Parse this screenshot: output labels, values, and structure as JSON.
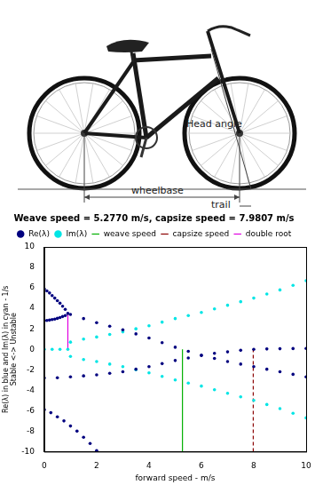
{
  "photo_labels": {
    "head_angle": "Head angle",
    "wheelbase": "wheelbase",
    "trail": "trail"
  },
  "chart_data": {
    "type": "scatter",
    "title": "Weave speed = 5.2770 m/s, capsize speed = 7.9807 m/s",
    "xlabel": "forward speed - m/s",
    "ylabel": [
      "Re(λ) in blue and Im(λ) in cyan - 1/s",
      "Stable <-> Unstable"
    ],
    "xlim": [
      0,
      10
    ],
    "xticks": [
      0,
      2,
      4,
      6,
      8,
      10
    ],
    "ylim": [
      -10,
      10
    ],
    "yticks": [
      -10,
      -8,
      -6,
      -4,
      -2,
      0,
      2,
      4,
      6,
      8,
      10
    ],
    "grid": false,
    "legend": "top",
    "series": [
      {
        "name": "Re(λ)",
        "color": "#00007f",
        "marker": "dot",
        "type": "scatter",
        "points": [
          [
            0,
            5.9
          ],
          [
            0.1,
            5.7
          ],
          [
            0.2,
            5.5
          ],
          [
            0.3,
            5.25
          ],
          [
            0.4,
            5.0
          ],
          [
            0.5,
            4.75
          ],
          [
            0.6,
            4.5
          ],
          [
            0.7,
            4.2
          ],
          [
            0.8,
            3.9
          ],
          [
            0.9,
            3.5
          ],
          [
            0,
            2.8
          ],
          [
            0.1,
            2.82
          ],
          [
            0.2,
            2.85
          ],
          [
            0.3,
            2.9
          ],
          [
            0.4,
            2.95
          ],
          [
            0.5,
            3.02
          ],
          [
            0.6,
            3.1
          ],
          [
            0.7,
            3.2
          ],
          [
            0.8,
            3.3
          ],
          [
            1,
            3.4
          ],
          [
            1.5,
            3.0
          ],
          [
            2,
            2.6
          ],
          [
            2.5,
            2.25
          ],
          [
            3,
            1.9
          ],
          [
            3.5,
            1.5
          ],
          [
            4,
            1.1
          ],
          [
            4.5,
            0.65
          ],
          [
            5,
            0.2
          ],
          [
            5.5,
            -0.2
          ],
          [
            6,
            -0.6
          ],
          [
            6.5,
            -0.9
          ],
          [
            7,
            -1.2
          ],
          [
            7.5,
            -1.45
          ],
          [
            8,
            -1.7
          ],
          [
            8.5,
            -1.95
          ],
          [
            9,
            -2.2
          ],
          [
            9.5,
            -2.45
          ],
          [
            10,
            -2.7
          ],
          [
            0,
            -2.8
          ],
          [
            0.5,
            -2.78
          ],
          [
            1,
            -2.7
          ],
          [
            1.5,
            -2.6
          ],
          [
            2,
            -2.5
          ],
          [
            2.5,
            -2.35
          ],
          [
            3,
            -2.2
          ],
          [
            3.5,
            -1.95
          ],
          [
            4,
            -1.7
          ],
          [
            4.5,
            -1.4
          ],
          [
            5,
            -1.1
          ],
          [
            5.5,
            -0.85
          ],
          [
            6,
            -0.6
          ],
          [
            6.5,
            -0.4
          ],
          [
            7,
            -0.25
          ],
          [
            7.5,
            -0.1
          ],
          [
            8,
            0
          ],
          [
            8.5,
            0.03
          ],
          [
            9,
            0.05
          ],
          [
            9.5,
            0.07
          ],
          [
            10,
            0.08
          ],
          [
            0,
            -5.9
          ],
          [
            0.25,
            -6.2
          ],
          [
            0.5,
            -6.6
          ],
          [
            0.75,
            -7
          ],
          [
            1,
            -7.5
          ],
          [
            1.25,
            -8
          ],
          [
            1.5,
            -8.6
          ],
          [
            1.75,
            -9.2
          ],
          [
            2,
            -9.9
          ]
        ]
      },
      {
        "name": "Im(λ)",
        "color": "#00e5e5",
        "marker": "dot",
        "type": "scatter",
        "points": [
          [
            0,
            0
          ],
          [
            0.3,
            0
          ],
          [
            0.6,
            0
          ],
          [
            0.9,
            0
          ],
          [
            1,
            0.7
          ],
          [
            1.5,
            1.0
          ],
          [
            2,
            1.2
          ],
          [
            2.5,
            1.45
          ],
          [
            3,
            1.7
          ],
          [
            3.5,
            2.0
          ],
          [
            4,
            2.3
          ],
          [
            4.5,
            2.65
          ],
          [
            5,
            3.0
          ],
          [
            5.5,
            3.3
          ],
          [
            6,
            3.6
          ],
          [
            6.5,
            3.95
          ],
          [
            7,
            4.3
          ],
          [
            7.5,
            4.65
          ],
          [
            8,
            5.0
          ],
          [
            8.5,
            5.4
          ],
          [
            9,
            5.8
          ],
          [
            9.5,
            6.25
          ],
          [
            10,
            6.7
          ],
          [
            1,
            -0.7
          ],
          [
            1.5,
            -1.0
          ],
          [
            2,
            -1.2
          ],
          [
            2.5,
            -1.45
          ],
          [
            3,
            -1.7
          ],
          [
            3.5,
            -2.0
          ],
          [
            4,
            -2.3
          ],
          [
            4.5,
            -2.65
          ],
          [
            5,
            -3.0
          ],
          [
            5.5,
            -3.3
          ],
          [
            6,
            -3.6
          ],
          [
            6.5,
            -3.95
          ],
          [
            7,
            -4.3
          ],
          [
            7.5,
            -4.65
          ],
          [
            8,
            -5.0
          ],
          [
            8.5,
            -5.4
          ],
          [
            9,
            -5.8
          ],
          [
            9.5,
            -6.25
          ],
          [
            10,
            -6.7
          ]
        ]
      },
      {
        "name": "weave speed",
        "color": "#00b000",
        "type": "line",
        "line_style": "solid",
        "points": [
          [
            5.277,
            -10
          ],
          [
            5.277,
            0
          ]
        ]
      },
      {
        "name": "capsize speed",
        "color": "#8b0000",
        "type": "line",
        "line_style": "dashed",
        "points": [
          [
            7.9807,
            -10
          ],
          [
            7.9807,
            0
          ]
        ]
      },
      {
        "name": "double root",
        "color": "#e000e0",
        "type": "line",
        "line_style": "solid",
        "points": [
          [
            0.9,
            0
          ],
          [
            0.9,
            3.5
          ]
        ]
      }
    ]
  }
}
